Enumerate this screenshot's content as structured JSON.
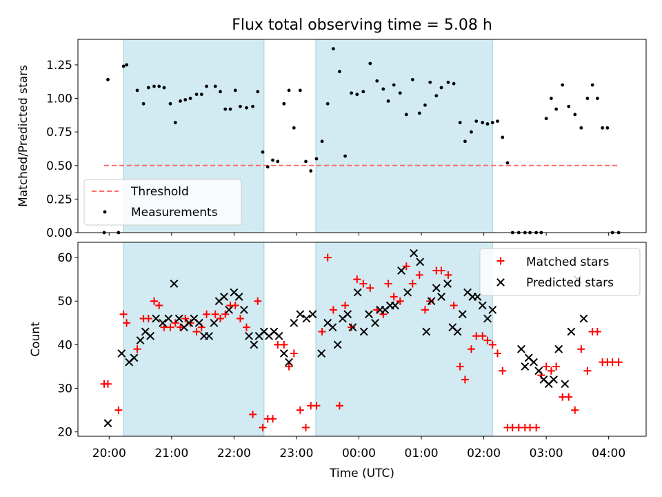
{
  "figure": {
    "title": "Flux total observing time = 5.08 h"
  },
  "chart_data": [
    {
      "type": "scatter",
      "ylabel": "Matched/Predicted stars",
      "xlabel": "",
      "xlim_hours": [
        19.5,
        28.6
      ],
      "ylim": [
        0,
        1.44
      ],
      "yticks": [
        "0.00",
        "0.25",
        "0.50",
        "0.75",
        "1.00",
        "1.25"
      ],
      "shaded_spans_hours": [
        [
          20.23,
          22.48
        ],
        [
          23.31,
          26.14
        ]
      ],
      "shade_color": "#add8e6",
      "legend": {
        "position": "lower-left",
        "entries": [
          "Threshold",
          "Measurements"
        ]
      },
      "series": [
        {
          "name": "Threshold",
          "style": "dashed-line",
          "color": "#ff6b6b",
          "x_hours": [
            19.92,
            28.16
          ],
          "y": [
            0.5,
            0.5
          ]
        },
        {
          "name": "Measurements",
          "style": "dot",
          "color": "#000000",
          "x_hours": [
            19.92,
            19.98,
            20.15,
            20.23,
            20.28,
            20.45,
            20.55,
            20.63,
            20.72,
            20.8,
            20.88,
            20.98,
            21.06,
            21.14,
            21.22,
            21.3,
            21.4,
            21.48,
            21.56,
            21.7,
            21.78,
            21.86,
            21.94,
            22.02,
            22.1,
            22.2,
            22.3,
            22.38,
            22.46,
            22.54,
            22.62,
            22.7,
            22.8,
            22.88,
            22.96,
            23.06,
            23.15,
            23.23,
            23.32,
            23.41,
            23.5,
            23.59,
            23.69,
            23.78,
            23.88,
            23.97,
            24.07,
            24.18,
            24.29,
            24.39,
            24.47,
            24.56,
            24.66,
            24.76,
            24.86,
            24.97,
            25.06,
            25.14,
            25.24,
            25.32,
            25.43,
            25.52,
            25.62,
            25.7,
            25.8,
            25.88,
            25.98,
            26.06,
            26.14,
            26.22,
            26.3,
            26.38,
            26.46,
            26.56,
            26.66,
            26.74,
            26.84,
            26.92,
            27.0,
            27.08,
            27.16,
            27.26,
            27.36,
            27.46,
            27.56,
            27.66,
            27.74,
            27.82,
            27.9,
            27.98,
            28.06,
            28.16
          ],
          "y": [
            0.0,
            1.14,
            0.0,
            1.24,
            1.25,
            1.06,
            0.96,
            1.08,
            1.09,
            1.09,
            1.08,
            0.96,
            0.82,
            0.98,
            0.99,
            1.0,
            1.03,
            1.03,
            1.09,
            1.09,
            1.05,
            0.92,
            0.92,
            1.06,
            0.94,
            0.93,
            0.94,
            1.05,
            0.6,
            0.49,
            0.54,
            0.53,
            0.96,
            1.06,
            0.78,
            1.06,
            0.53,
            0.46,
            0.55,
            0.68,
            0.96,
            1.37,
            1.2,
            0.57,
            1.04,
            1.03,
            1.05,
            1.26,
            1.13,
            1.07,
            0.98,
            1.1,
            1.04,
            0.88,
            1.14,
            0.89,
            0.95,
            1.12,
            1.02,
            1.08,
            1.12,
            1.11,
            0.82,
            0.68,
            0.75,
            0.83,
            0.82,
            0.81,
            0.82,
            0.83,
            0.71,
            0.52,
            0.0,
            0.0,
            0.0,
            0.0,
            0.0,
            0.0,
            0.85,
            1.0,
            0.92,
            1.1,
            0.94,
            0.88,
            0.78,
            1.0,
            1.1,
            1.0,
            0.78,
            0.78,
            0.0,
            0.0
          ]
        }
      ]
    },
    {
      "type": "scatter",
      "ylabel": "Count",
      "xlabel": "Time (UTC)",
      "xlim_hours": [
        19.5,
        28.6
      ],
      "ylim": [
        19.0,
        63.5
      ],
      "yticks": [
        "20",
        "30",
        "40",
        "50",
        "60"
      ],
      "xticks": [
        {
          "hour": 20,
          "label": "20:00"
        },
        {
          "hour": 21,
          "label": "21:00"
        },
        {
          "hour": 22,
          "label": "22:00"
        },
        {
          "hour": 23,
          "label": "23:00"
        },
        {
          "hour": 24,
          "label": "00:00"
        },
        {
          "hour": 25,
          "label": "01:00"
        },
        {
          "hour": 26,
          "label": "02:00"
        },
        {
          "hour": 27,
          "label": "03:00"
        },
        {
          "hour": 28,
          "label": "04:00"
        }
      ],
      "shaded_spans_hours": [
        [
          20.23,
          22.48
        ],
        [
          23.31,
          26.14
        ]
      ],
      "shade_color": "#add8e6",
      "legend": {
        "position": "top-right",
        "entries": [
          "Matched stars",
          "Predicted stars"
        ]
      },
      "series": [
        {
          "name": "Matched stars",
          "marker": "plus",
          "color": "#ff0000",
          "x_hours": [
            19.92,
            19.98,
            20.15,
            20.23,
            20.28,
            20.45,
            20.55,
            20.63,
            20.72,
            20.8,
            20.88,
            20.98,
            21.06,
            21.14,
            21.22,
            21.3,
            21.4,
            21.48,
            21.56,
            21.7,
            21.78,
            21.86,
            21.94,
            22.02,
            22.1,
            22.2,
            22.3,
            22.38,
            22.46,
            22.54,
            22.62,
            22.7,
            22.8,
            22.88,
            22.96,
            23.06,
            23.15,
            23.23,
            23.32,
            23.41,
            23.5,
            23.59,
            23.69,
            23.78,
            23.88,
            23.97,
            24.07,
            24.18,
            24.29,
            24.39,
            24.47,
            24.56,
            24.66,
            24.76,
            24.86,
            24.97,
            25.06,
            25.14,
            25.24,
            25.32,
            25.43,
            25.52,
            25.62,
            25.7,
            25.8,
            25.88,
            25.98,
            26.06,
            26.14,
            26.22,
            26.3,
            26.38,
            26.46,
            26.56,
            26.66,
            26.74,
            26.84,
            26.92,
            27.0,
            27.08,
            27.16,
            27.26,
            27.36,
            27.46,
            27.56,
            27.66,
            27.74,
            27.82,
            27.9,
            27.98,
            28.06,
            28.16
          ],
          "y": [
            31,
            31,
            25,
            47,
            45,
            39,
            46,
            46,
            50,
            49,
            44,
            44,
            45,
            44,
            46,
            45,
            43,
            44,
            47,
            47,
            46,
            47,
            49,
            49,
            46,
            44,
            24,
            50,
            21,
            23,
            23,
            40,
            40,
            35,
            38,
            25,
            21,
            26,
            26,
            43,
            60,
            48,
            26,
            49,
            44,
            55,
            54,
            53,
            48,
            47,
            54,
            51,
            50,
            58,
            54,
            56,
            48,
            50,
            57,
            57,
            56,
            49,
            35,
            32,
            39,
            42,
            42,
            41,
            40,
            38,
            34,
            21,
            21,
            21,
            21,
            21,
            21,
            33,
            35,
            34,
            35,
            28,
            28,
            25,
            39,
            34,
            43,
            43,
            36,
            36,
            36,
            36
          ]
        },
        {
          "name": "Predicted stars",
          "marker": "x",
          "color": "#000000",
          "x_hours": [
            19.98,
            20.2,
            20.32,
            20.4,
            20.5,
            20.58,
            20.66,
            20.75,
            20.86,
            20.95,
            21.04,
            21.12,
            21.2,
            21.28,
            21.36,
            21.44,
            21.52,
            21.6,
            21.68,
            21.76,
            21.84,
            21.92,
            22.0,
            22.08,
            22.16,
            22.24,
            22.32,
            22.4,
            22.48,
            22.56,
            22.64,
            22.72,
            22.8,
            22.88,
            22.96,
            23.06,
            23.16,
            23.26,
            23.4,
            23.5,
            23.58,
            23.66,
            23.74,
            23.82,
            23.9,
            23.98,
            24.08,
            24.16,
            24.26,
            24.34,
            24.42,
            24.5,
            24.58,
            24.68,
            24.78,
            24.88,
            24.98,
            25.08,
            25.16,
            25.24,
            25.32,
            25.42,
            25.5,
            25.58,
            25.66,
            25.74,
            25.82,
            25.9,
            25.98,
            26.06,
            26.14,
            26.6,
            26.66,
            26.72,
            26.8,
            26.88,
            26.96,
            27.04,
            27.12,
            27.2,
            27.3,
            27.4,
            27.5,
            27.6
          ],
          "y": [
            22,
            38,
            36,
            37,
            41,
            43,
            42,
            46,
            45,
            46,
            54,
            46,
            44,
            45,
            46,
            45,
            42,
            42,
            45,
            50,
            51,
            48,
            52,
            51,
            48,
            42,
            40,
            42,
            43,
            42,
            43,
            42,
            38,
            36,
            45,
            47,
            46,
            47,
            38,
            45,
            44,
            40,
            46,
            47,
            44,
            52,
            43,
            47,
            45,
            48,
            48,
            49,
            49,
            57,
            52,
            61,
            59,
            43,
            50,
            53,
            51,
            54,
            44,
            43,
            47,
            52,
            51,
            51,
            49,
            46,
            48,
            39,
            35,
            37,
            36,
            34,
            32,
            31,
            32,
            39,
            31,
            43,
            55,
            46
          ]
        }
      ]
    }
  ]
}
